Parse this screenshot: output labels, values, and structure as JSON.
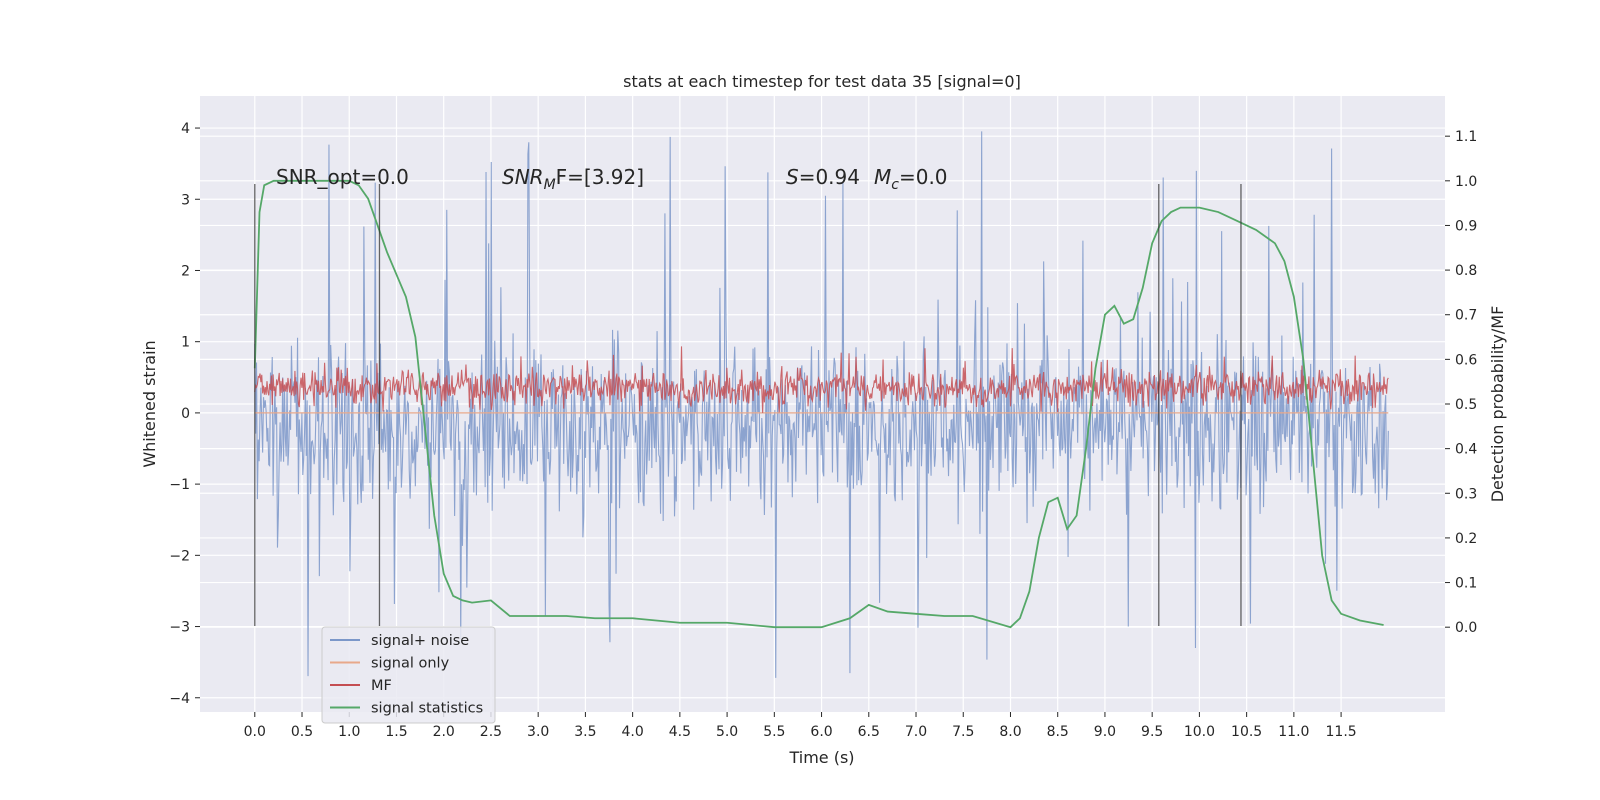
{
  "chart_data": {
    "type": "line",
    "title": "stats at each timestep for test data 35 [signal=0]",
    "xlabel": "Time (s)",
    "ylabel_left": "Whitened strain",
    "ylabel_right": "Detection probability/MF",
    "xlim": [
      -0.58,
      12.6
    ],
    "ylim_left": [
      -4.2,
      4.45
    ],
    "ylim_right": [
      -0.19,
      1.19
    ],
    "x_ticks": [
      "0.0",
      "0.5",
      "1.0",
      "1.5",
      "2.0",
      "2.5",
      "3.0",
      "3.5",
      "4.0",
      "4.5",
      "5.0",
      "5.5",
      "6.0",
      "6.5",
      "7.0",
      "7.5",
      "8.0",
      "8.5",
      "9.0",
      "9.5",
      "10.0",
      "10.5",
      "11.0",
      "11.5"
    ],
    "y_ticks_left": [
      "4",
      "3",
      "2",
      "1",
      "0",
      "−1",
      "−2",
      "−3",
      "−4"
    ],
    "y_ticks_right": [
      "1.1",
      "1.0",
      "0.9",
      "0.8",
      "0.7",
      "0.6",
      "0.5",
      "0.4",
      "0.3",
      "0.2",
      "0.1",
      "0.0"
    ],
    "grid": true,
    "legend_position": "lower-left",
    "annotations": {
      "snr_opt": "SNR_opt=0.0",
      "snr_mf_label": "SNR",
      "snr_mf_sub": "M",
      "snr_mf_tail": "F=[3.92]",
      "s_label": "S",
      "s_value": "=0.94",
      "mc_label": "M",
      "mc_sub": "c",
      "mc_value": "=0.0"
    },
    "vertical_markers_x": [
      0.0,
      1.32,
      9.57,
      10.44
    ],
    "series": [
      {
        "name": "signal+ noise",
        "axis": "left",
        "color": "#7b97c9",
        "kind": "noise",
        "t_range": [
          0.0,
          12.0
        ],
        "center": -0.2,
        "band": [
          -1.7,
          1.4
        ],
        "peak_range": [
          -3.8,
          4.1
        ]
      },
      {
        "name": "signal only",
        "axis": "left",
        "color": "#e8a88a",
        "kind": "constant",
        "value": 0.0
      },
      {
        "name": "MF",
        "axis": "left",
        "color": "#c44e52",
        "kind": "noise",
        "t_range": [
          0.0,
          12.0
        ],
        "center": 0.3,
        "band": [
          0.0,
          0.7
        ],
        "peak_range": [
          0.0,
          0.95
        ]
      },
      {
        "name": "signal statistics",
        "axis": "right",
        "color": "#55a868",
        "kind": "line",
        "x": [
          0.0,
          0.05,
          0.1,
          0.2,
          0.3,
          0.5,
          0.8,
          1.0,
          1.1,
          1.2,
          1.3,
          1.4,
          1.5,
          1.6,
          1.7,
          1.8,
          1.9,
          2.0,
          2.1,
          2.2,
          2.3,
          2.5,
          2.7,
          3.0,
          3.3,
          3.6,
          4.0,
          4.5,
          5.0,
          5.5,
          6.0,
          6.3,
          6.5,
          6.7,
          7.0,
          7.3,
          7.6,
          8.0,
          8.1,
          8.2,
          8.3,
          8.4,
          8.5,
          8.6,
          8.7,
          8.8,
          8.9,
          9.0,
          9.1,
          9.2,
          9.3,
          9.4,
          9.5,
          9.6,
          9.7,
          9.8,
          10.0,
          10.2,
          10.4,
          10.6,
          10.8,
          10.9,
          11.0,
          11.1,
          11.2,
          11.3,
          11.4,
          11.5,
          11.7,
          11.95
        ],
        "y": [
          0.58,
          0.93,
          0.99,
          1.0,
          1.0,
          1.0,
          1.0,
          1.0,
          0.99,
          0.96,
          0.9,
          0.84,
          0.79,
          0.74,
          0.65,
          0.45,
          0.25,
          0.12,
          0.07,
          0.06,
          0.055,
          0.06,
          0.025,
          0.025,
          0.025,
          0.02,
          0.02,
          0.01,
          0.01,
          0.0,
          0.0,
          0.02,
          0.05,
          0.035,
          0.03,
          0.025,
          0.025,
          0.0,
          0.02,
          0.08,
          0.2,
          0.28,
          0.29,
          0.22,
          0.25,
          0.4,
          0.58,
          0.7,
          0.72,
          0.68,
          0.69,
          0.76,
          0.86,
          0.91,
          0.93,
          0.94,
          0.94,
          0.93,
          0.91,
          0.89,
          0.86,
          0.82,
          0.74,
          0.6,
          0.38,
          0.16,
          0.06,
          0.03,
          0.015,
          0.005
        ]
      }
    ]
  }
}
